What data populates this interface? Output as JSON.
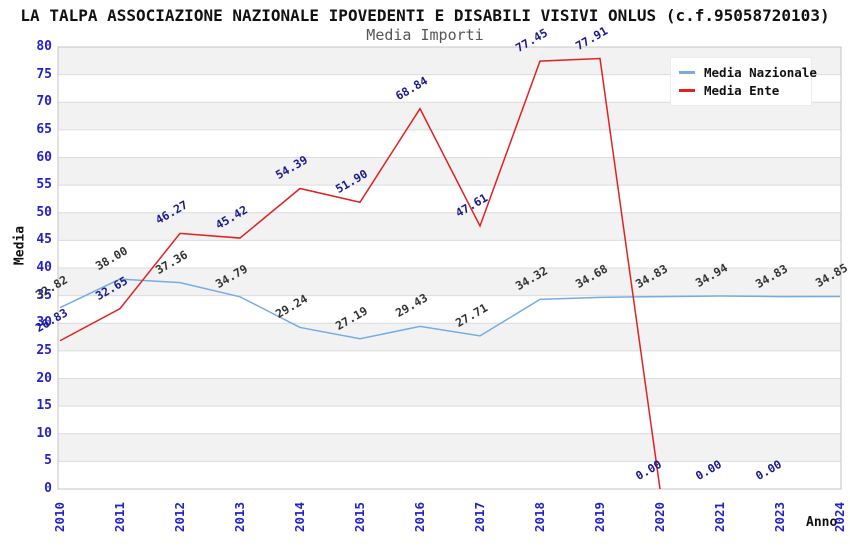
{
  "title": "LA TALPA ASSOCIAZIONE NAZIONALE IPOVEDENTI E DISABILI VISIVI ONLUS (c.f.95058720103)",
  "subtitle": "Media Importi",
  "chart_data": {
    "type": "line",
    "title": "LA TALPA ASSOCIAZIONE NAZIONALE IPOVEDENTI E DISABILI VISIVI ONLUS (c.f.95058720103)",
    "subtitle": "Media Importi",
    "xlabel": "Anno",
    "ylabel": "Media",
    "categories": [
      "2010",
      "2011",
      "2012",
      "2013",
      "2014",
      "2015",
      "2016",
      "2017",
      "2018",
      "2019",
      "2020",
      "2021",
      "2023",
      "2024"
    ],
    "series": [
      {
        "name": "Media Nazionale",
        "color": "#76ade0",
        "label_color": "#333333",
        "values": [
          32.82,
          38.0,
          37.36,
          34.79,
          29.24,
          27.19,
          29.43,
          27.71,
          34.32,
          34.68,
          34.83,
          34.94,
          34.83,
          34.85
        ]
      },
      {
        "name": "Media Ente",
        "color": "#e02222",
        "label_color": "#1a1a8f",
        "values": [
          26.83,
          32.65,
          46.27,
          45.42,
          54.39,
          51.9,
          68.84,
          47.61,
          77.45,
          77.91,
          0.0,
          0.0,
          0.0,
          null
        ],
        "line_end_index": 10
      }
    ],
    "ylim": [
      0,
      80
    ],
    "ytick_step": 5,
    "grid": "horizontal-bands-every-5",
    "legend_position": "top-right",
    "styles": {
      "band_color": "#f2f2f2",
      "gridline_color": "#dcdcdc",
      "plot_border_color": "#c6c6c6",
      "tick_label_color": "#2222cc"
    }
  },
  "legend": {
    "items": [
      {
        "label": "Media Nazionale",
        "color": "#76ade0"
      },
      {
        "label": "Media Ente",
        "color": "#e02222"
      }
    ]
  }
}
